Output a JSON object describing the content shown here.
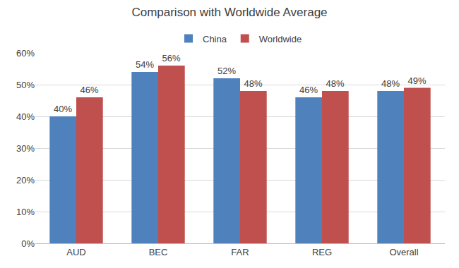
{
  "chart_data": {
    "type": "bar",
    "title": "Comparison with Worldwide Average",
    "categories": [
      "AUD",
      "BEC",
      "FAR",
      "REG",
      "Overall"
    ],
    "series": [
      {
        "name": "China",
        "color": "#4f81bd",
        "values": [
          40,
          54,
          52,
          46,
          48
        ],
        "value_labels": [
          "40%",
          "54%",
          "52%",
          "46%",
          "48%"
        ]
      },
      {
        "name": "Worldwide",
        "color": "#c0504d",
        "values": [
          46,
          56,
          48,
          48,
          49
        ],
        "value_labels": [
          "46%",
          "56%",
          "48%",
          "48%",
          "49%"
        ]
      }
    ],
    "ylim": [
      0,
      60
    ],
    "yticks": [
      {
        "value": 0,
        "label": "0%"
      },
      {
        "value": 10,
        "label": "10%"
      },
      {
        "value": 20,
        "label": "20%"
      },
      {
        "value": 30,
        "label": "30%"
      },
      {
        "value": 40,
        "label": "40%"
      },
      {
        "value": 50,
        "label": "50%"
      },
      {
        "value": 60,
        "label": "60%"
      }
    ],
    "grid": true,
    "legend": "top",
    "data_labels": true
  }
}
